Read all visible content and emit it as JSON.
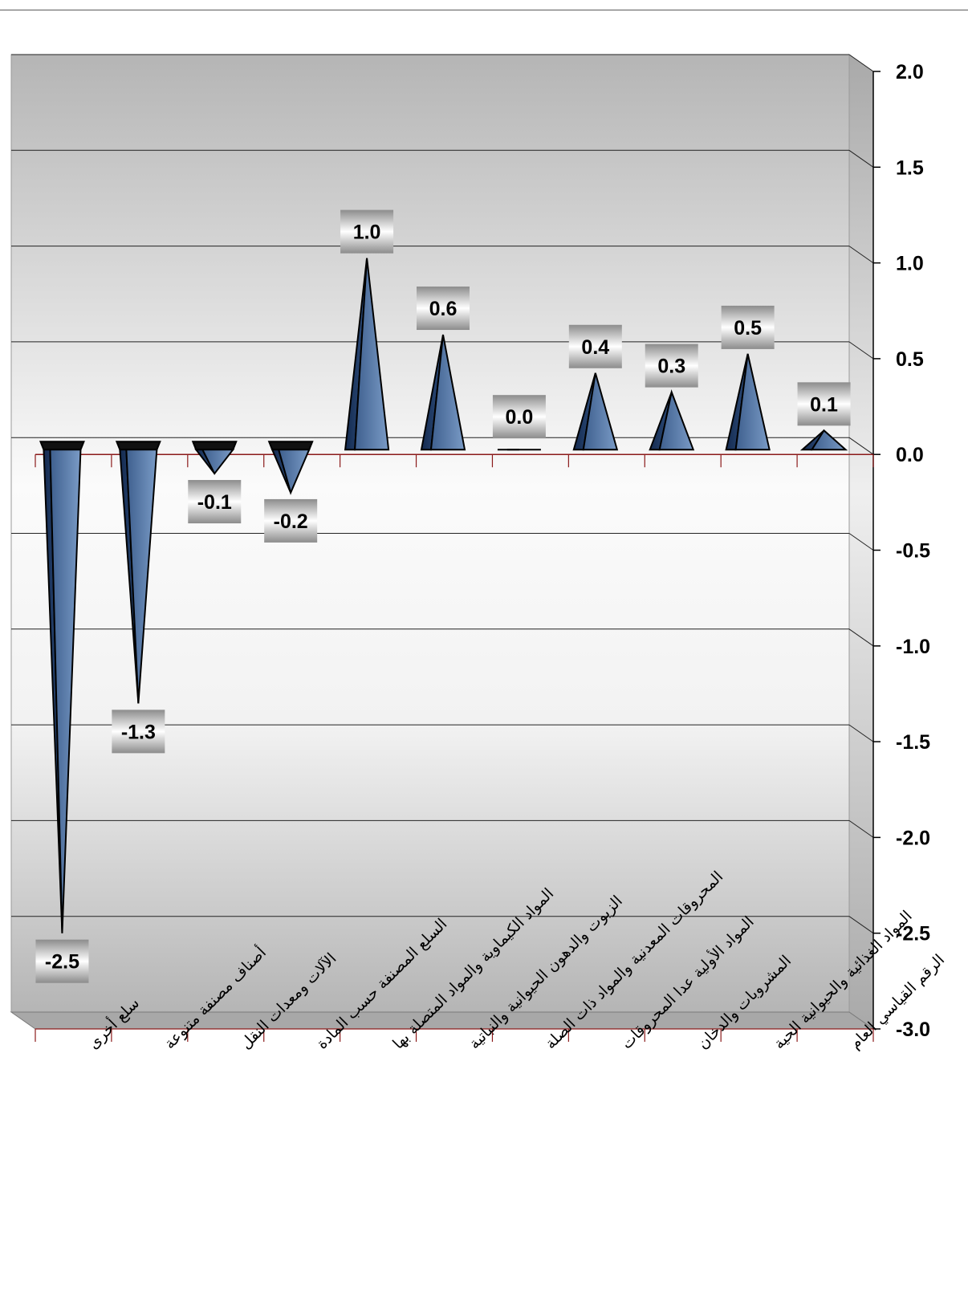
{
  "chart_data": {
    "type": "bar",
    "style": "3d-pyramid",
    "categories": [
      "سلع أخرى",
      "أصناف مصنفة متنوعة",
      "الآلات ومعدات النقل",
      "السلع المصنفة حسب المادة",
      "المواد الكيماوية والمواد المتصلة بها",
      "الزيوت والدهون الحيوانية والنباتية",
      "المحروقات المعدنية والمواد ذات الصلة",
      "المواد الأولية عدا المحروقات",
      "المشروبات والدخان",
      "المواد الغذائية والحيوانية الحية",
      "الرقم القياسي العام"
    ],
    "values": [
      -2.5,
      -1.3,
      -0.1,
      -0.2,
      1.0,
      0.6,
      0.0,
      0.4,
      0.3,
      0.5,
      0.1
    ],
    "value_labels": [
      "-2.5",
      "-1.3",
      "-0.1",
      "-0.2",
      "1.0",
      "0.6",
      "0.0",
      "0.4",
      "0.3",
      "0.5",
      "0.1"
    ],
    "ylim": [
      -3.0,
      2.0
    ],
    "yticks": [
      "2.0",
      "1.5",
      "1.0",
      "0.5",
      "0.0",
      "-0.5",
      "-1.0",
      "-1.5",
      "-2.0",
      "-2.5",
      "-3.0"
    ],
    "y_axis_position": "right",
    "grid": true,
    "legend": "none",
    "colors": {
      "bar_dark": "#1f3a66",
      "bar_light": "#5f80ad",
      "bar_top": "#111111",
      "zero_line": "#8b1a1a",
      "panel_dark": "#b4b4b4",
      "panel_light": "#fafafa",
      "floor": "#a8a8a8"
    }
  }
}
